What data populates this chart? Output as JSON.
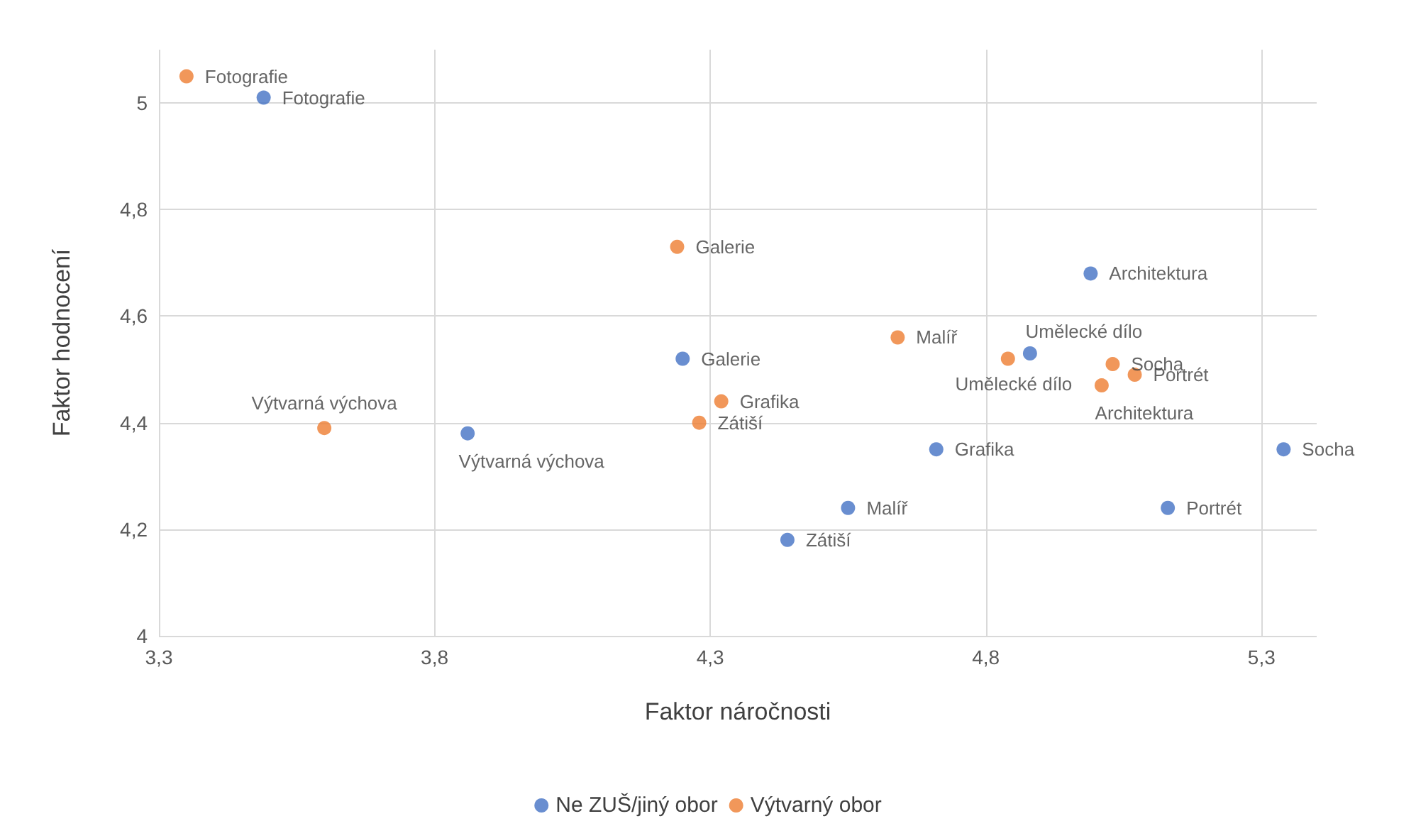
{
  "chart_data": {
    "type": "scatter",
    "xlabel": "Faktor náročnosti",
    "ylabel": "Faktor hodnocení",
    "series": [
      {
        "name": "Ne ZUŠ/jiný obor",
        "color": "#4472c4",
        "x": [
          3.49,
          4.25,
          3.86,
          4.44,
          4.55,
          4.71,
          4.88,
          4.99,
          5.13,
          5.34
        ],
        "values": [
          5.01,
          4.52,
          4.38,
          4.18,
          4.24,
          4.35,
          4.53,
          4.68,
          4.24,
          4.35
        ]
      },
      {
        "name": "Výtvarný obor",
        "color": "#ed7d31",
        "x": [
          3.35,
          3.6,
          4.24,
          4.28,
          4.32,
          4.64,
          4.84,
          5.03,
          5.01,
          5.07
        ],
        "values": [
          5.05,
          4.39,
          4.73,
          4.4,
          4.44,
          4.56,
          4.52,
          4.51,
          4.47,
          4.49
        ]
      }
    ],
    "annotations": [
      {
        "text": "Fotografie",
        "x": 3.49,
        "y": 5.01
      },
      {
        "text": "Galerie",
        "x": 4.25,
        "y": 4.52
      },
      {
        "text": "Výtvarná výchova",
        "x": 3.86,
        "y": 4.38
      },
      {
        "text": "Zátiší",
        "x": 4.44,
        "y": 4.18
      },
      {
        "text": "Malíř",
        "x": 4.55,
        "y": 4.24
      },
      {
        "text": "Grafika",
        "x": 4.71,
        "y": 4.35
      },
      {
        "text": "Umělecké dílo",
        "x": 4.88,
        "y": 4.53
      },
      {
        "text": "Architektura",
        "x": 4.99,
        "y": 4.68
      },
      {
        "text": "Portrét",
        "x": 5.13,
        "y": 4.24
      },
      {
        "text": "Socha",
        "x": 5.34,
        "y": 4.35
      },
      {
        "text": "Fotografie",
        "x": 3.35,
        "y": 5.05
      },
      {
        "text": "Výtvarná výchova",
        "x": 3.6,
        "y": 4.39
      },
      {
        "text": "Galerie",
        "x": 4.24,
        "y": 4.73
      },
      {
        "text": "Zátiší",
        "x": 4.28,
        "y": 4.4
      },
      {
        "text": "Grafika",
        "x": 4.32,
        "y": 4.44
      },
      {
        "text": "Malíř",
        "x": 4.64,
        "y": 4.56
      },
      {
        "text": "Umělecké dílo",
        "x": 4.84,
        "y": 4.52
      },
      {
        "text": "Socha",
        "x": 5.03,
        "y": 4.51
      },
      {
        "text": "Architektura",
        "x": 5.01,
        "y": 4.47
      },
      {
        "text": "Portrét",
        "x": 5.07,
        "y": 4.49
      }
    ],
    "xlim": [
      3.3,
      5.4
    ],
    "xticks": [
      {
        "value": 3.3,
        "label": "3,3"
      },
      {
        "value": 3.8,
        "label": "3,8"
      },
      {
        "value": 4.3,
        "label": "4,3"
      },
      {
        "value": 4.8,
        "label": "4,8"
      },
      {
        "value": 5.3,
        "label": "5,3"
      }
    ],
    "ylim": [
      4,
      5.1
    ],
    "yticks": [
      {
        "value": 4,
        "label": "4"
      },
      {
        "value": 4.2,
        "label": "4,2"
      },
      {
        "value": 4.4,
        "label": "4,4"
      },
      {
        "value": 4.6,
        "label": "4,6"
      },
      {
        "value": 4.8,
        "label": "4,8"
      },
      {
        "value": 5,
        "label": "5"
      }
    ],
    "grid": true,
    "legend": "bottom",
    "marker": "circle"
  }
}
